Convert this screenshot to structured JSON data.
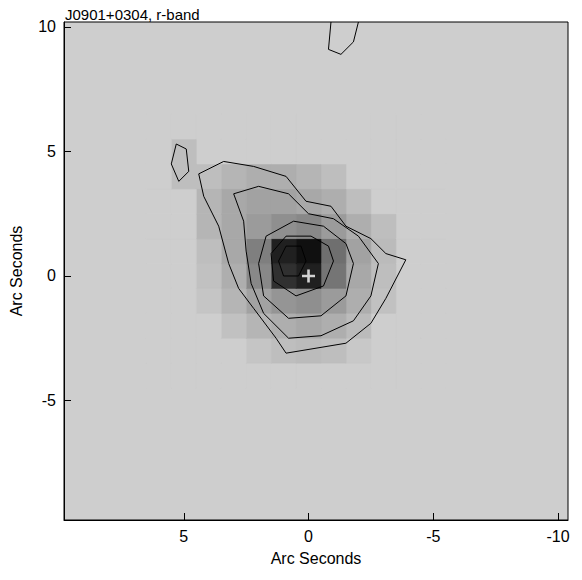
{
  "chart_data": {
    "type": "heatmap",
    "title": "J0901+0304, r-band",
    "x_label": "Arc Seconds",
    "y_label": "Arc Seconds",
    "xlim": [
      9.8,
      -10.4
    ],
    "xticks": [
      5,
      0,
      -5,
      -10
    ],
    "ylim": [
      -9.8,
      10.2
    ],
    "yticks": [
      -5,
      0,
      5,
      10
    ],
    "grid": false,
    "cells": {
      "x": [
        -5,
        -4,
        -3,
        -2,
        -1,
        0,
        1,
        2,
        3,
        4,
        5,
        6
      ],
      "y": [
        -4,
        -3,
        -2,
        -1,
        0,
        1,
        2,
        3,
        4,
        5,
        6
      ],
      "values": [
        [
          0,
          0,
          0,
          0,
          0,
          0,
          0,
          0,
          0,
          0,
          0,
          0
        ],
        [
          0,
          0,
          0,
          2,
          5,
          6,
          5,
          3,
          0,
          0,
          0,
          0
        ],
        [
          0,
          0,
          0,
          6,
          10,
          12,
          10,
          8,
          4,
          0,
          0,
          0
        ],
        [
          0,
          0,
          4,
          10,
          16,
          20,
          18,
          14,
          8,
          3,
          0,
          0
        ],
        [
          0,
          0,
          5,
          12,
          28,
          55,
          50,
          22,
          10,
          4,
          0,
          0
        ],
        [
          0,
          0,
          6,
          14,
          30,
          60,
          55,
          25,
          12,
          5,
          0,
          0
        ],
        [
          0,
          0,
          5,
          10,
          16,
          22,
          20,
          16,
          12,
          8,
          0,
          0
        ],
        [
          0,
          0,
          0,
          5,
          10,
          12,
          14,
          14,
          12,
          8,
          0,
          0
        ],
        [
          0,
          0,
          0,
          0,
          5,
          8,
          10,
          10,
          8,
          5,
          5,
          0
        ],
        [
          0,
          0,
          0,
          0,
          0,
          0,
          0,
          0,
          0,
          0,
          5,
          0
        ],
        [
          0,
          0,
          0,
          0,
          0,
          0,
          0,
          0,
          0,
          0,
          0,
          0
        ]
      ]
    },
    "cell_range": [
      0,
      60
    ],
    "contours": [
      {
        "points": [
          [
            -3.9,
            0.65
          ],
          [
            -3.1,
            -0.9
          ],
          [
            -2.5,
            -1.9
          ],
          [
            -1.5,
            -2.7
          ],
          [
            -0.3,
            -2.9
          ],
          [
            0.9,
            -3.1
          ],
          [
            1.3,
            -2.5
          ],
          [
            2.2,
            -1.3
          ],
          [
            2.8,
            -0.5
          ],
          [
            3.2,
            0.5
          ],
          [
            3.6,
            2.0
          ],
          [
            4.2,
            3.2
          ],
          [
            4.4,
            4.1
          ],
          [
            3.4,
            4.6
          ],
          [
            2.2,
            4.4
          ],
          [
            0.9,
            4.0
          ],
          [
            0.1,
            3.0
          ],
          [
            -0.9,
            2.8
          ],
          [
            -1.5,
            2.0
          ],
          [
            -2.5,
            1.5
          ],
          [
            -3.1,
            0.9
          ],
          [
            -3.9,
            0.65
          ]
        ]
      },
      {
        "points": [
          [
            -2.8,
            0.5
          ],
          [
            -2.5,
            -0.8
          ],
          [
            -1.8,
            -1.8
          ],
          [
            -0.5,
            -2.4
          ],
          [
            0.8,
            -2.5
          ],
          [
            1.8,
            -1.5
          ],
          [
            2.3,
            -0.3
          ],
          [
            2.5,
            1.0
          ],
          [
            2.6,
            2.2
          ],
          [
            3.0,
            3.3
          ],
          [
            2.0,
            3.6
          ],
          [
            0.8,
            3.3
          ],
          [
            0.0,
            2.5
          ],
          [
            -1.0,
            2.3
          ],
          [
            -2.0,
            1.6
          ],
          [
            -2.8,
            0.5
          ]
        ]
      },
      {
        "points": [
          [
            -1.8,
            0.5
          ],
          [
            -1.5,
            -0.8
          ],
          [
            -0.5,
            -1.6
          ],
          [
            0.8,
            -1.7
          ],
          [
            1.8,
            -0.8
          ],
          [
            2.0,
            0.5
          ],
          [
            1.7,
            1.6
          ],
          [
            0.6,
            2.2
          ],
          [
            -0.6,
            2.0
          ],
          [
            -1.5,
            1.3
          ],
          [
            -1.8,
            0.5
          ]
        ]
      },
      {
        "points": [
          [
            -1.0,
            0.6
          ],
          [
            -0.6,
            -0.4
          ],
          [
            0.5,
            -0.8
          ],
          [
            1.4,
            -0.2
          ],
          [
            1.5,
            0.9
          ],
          [
            0.9,
            1.6
          ],
          [
            -0.1,
            1.6
          ],
          [
            -0.8,
            1.2
          ],
          [
            -1.0,
            0.6
          ]
        ]
      },
      {
        "points": [
          [
            0.1,
            0.6
          ],
          [
            0.4,
            0.0
          ],
          [
            1.0,
            0.0
          ],
          [
            1.2,
            0.6
          ],
          [
            0.9,
            1.2
          ],
          [
            0.3,
            1.2
          ],
          [
            0.1,
            0.6
          ]
        ]
      },
      {
        "points": [
          [
            5.2,
            3.8
          ],
          [
            4.8,
            4.2
          ],
          [
            4.9,
            5.1
          ],
          [
            5.3,
            5.3
          ],
          [
            5.5,
            4.5
          ],
          [
            5.2,
            3.8
          ]
        ]
      },
      {
        "points": [
          [
            -0.9,
            10.2
          ],
          [
            -0.8,
            9.1
          ],
          [
            -1.3,
            8.9
          ],
          [
            -1.8,
            9.4
          ],
          [
            -2.0,
            10.2
          ]
        ]
      }
    ],
    "line_style": "solid",
    "markers": [
      {
        "x": 0,
        "y": 0,
        "marker": "plus",
        "color": "#ffffff"
      }
    ]
  }
}
